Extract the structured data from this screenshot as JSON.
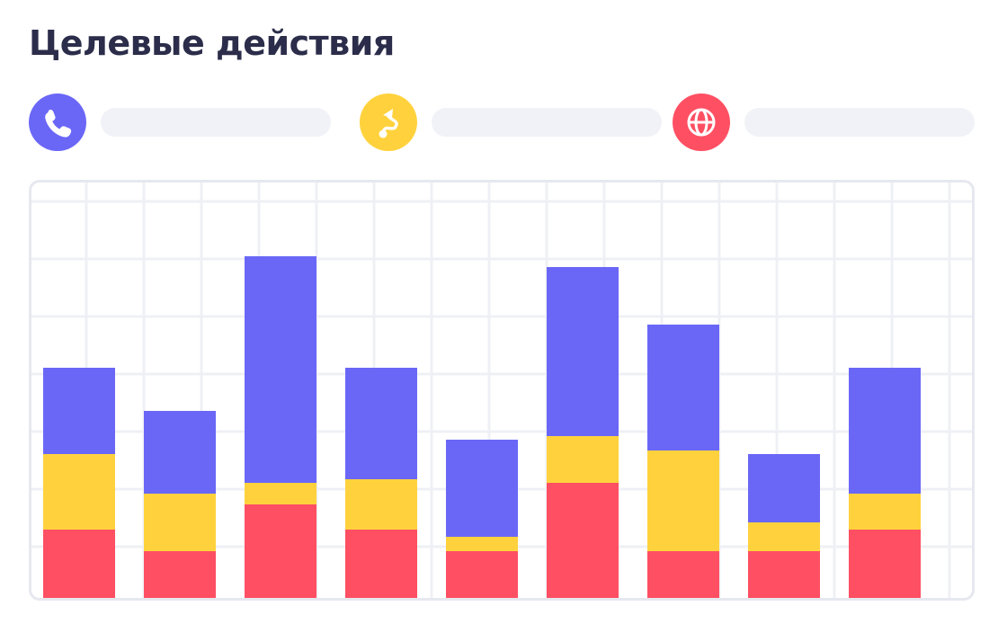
{
  "title": "Целевые действия",
  "legend": [
    {
      "icon": "phone-icon",
      "color": "#6a67f7"
    },
    {
      "icon": "route-icon",
      "color": "#ffd23d"
    },
    {
      "icon": "globe-icon",
      "color": "#ff4f63"
    }
  ],
  "chart_data": {
    "type": "bar",
    "stacked": true,
    "categories": [
      "",
      "",
      "",
      "",
      "",
      "",
      "",
      "",
      ""
    ],
    "series": [
      {
        "color": "#ff4f63",
        "values": [
          76,
          52,
          104,
          76,
          52,
          128,
          52,
          52,
          76
        ]
      },
      {
        "color": "#ffd23d",
        "values": [
          84,
          64,
          24,
          56,
          16,
          52,
          112,
          32,
          40
        ]
      },
      {
        "color": "#6a67f7",
        "values": [
          96,
          92,
          252,
          124,
          108,
          188,
          140,
          76,
          140
        ]
      }
    ],
    "ylim": [
      0,
      440
    ],
    "grid": true
  }
}
